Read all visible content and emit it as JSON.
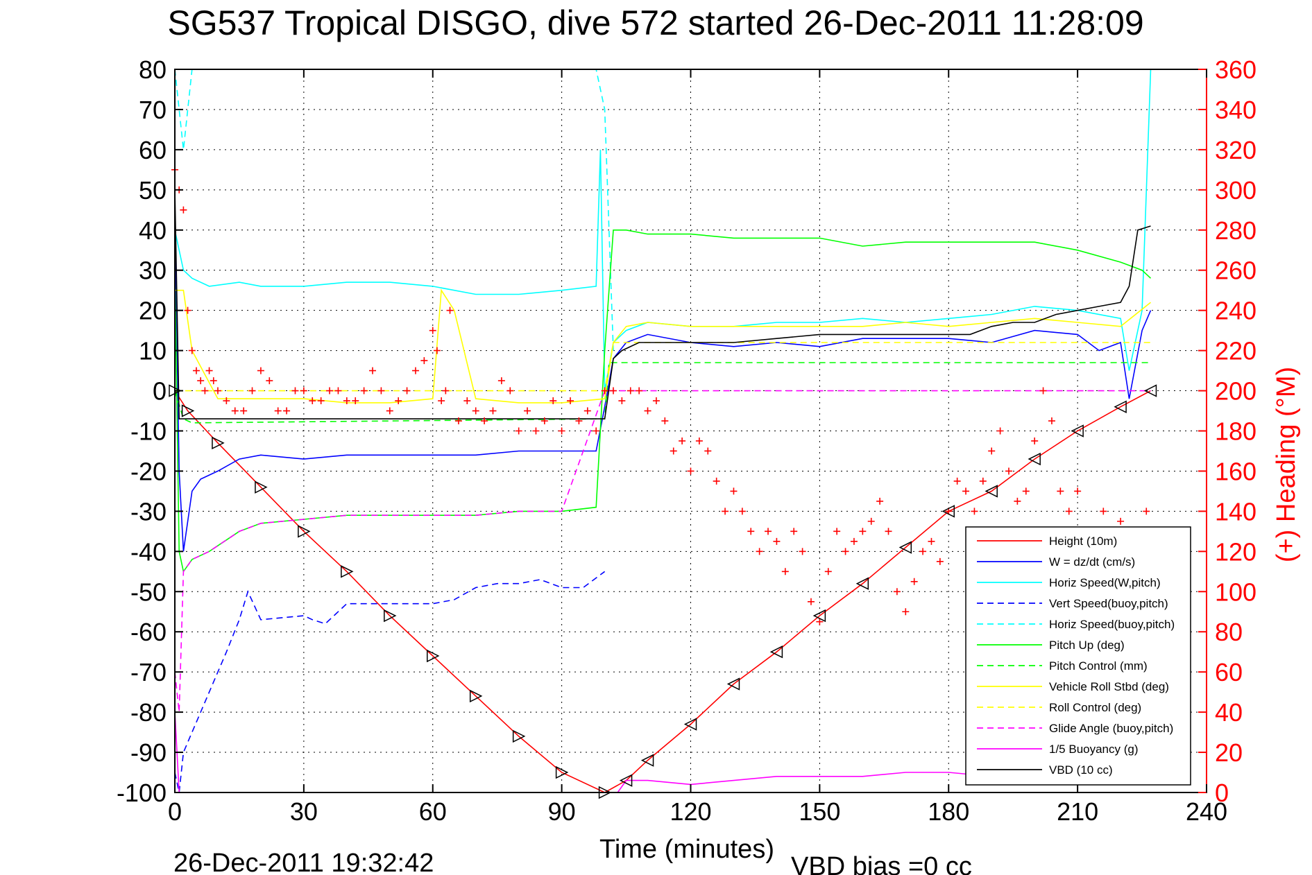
{
  "chart_data": {
    "type": "line",
    "title": "SG537 Tropical DISGO, dive 572 started 26-Dec-2011 11:28:09",
    "xlabel": "Time (minutes)",
    "ylabel_right": "(+) Heading (°M)",
    "footer_timestamp": "26-Dec-2011 19:32:42",
    "footer_bias": "VBD bias =0 cc",
    "xlim": [
      0,
      240
    ],
    "ylim_left": [
      -100,
      80
    ],
    "ylim_right": [
      0,
      360
    ],
    "xticks": [
      0,
      30,
      60,
      90,
      120,
      150,
      180,
      210,
      240
    ],
    "yticks_left": [
      -100,
      -90,
      -80,
      -70,
      -60,
      -50,
      -40,
      -30,
      -20,
      -10,
      0,
      10,
      20,
      30,
      40,
      50,
      60,
      70,
      80
    ],
    "yticks_right": [
      0,
      20,
      40,
      60,
      80,
      100,
      120,
      140,
      160,
      180,
      200,
      220,
      240,
      260,
      280,
      300,
      320,
      340,
      360
    ],
    "grid": true,
    "legend_position": "bottom-right",
    "colors": {
      "right_axis": "#ff0000",
      "height": "#ff0000",
      "w": "#0000ff",
      "horiz_speed": "#00ffff",
      "pitch": "#00ff00",
      "roll": "#ffff00",
      "glide": "#ff00ff",
      "vbd": "#000000",
      "heading": "#ff0000"
    },
    "series": [
      {
        "name": "Height (10m)",
        "color": "#ff0000",
        "dash": "solid",
        "x": [
          0,
          3,
          10,
          20,
          30,
          40,
          50,
          60,
          70,
          80,
          90,
          100,
          105,
          110,
          120,
          130,
          140,
          150,
          160,
          170,
          180,
          190,
          200,
          210,
          220,
          227
        ],
        "y": [
          0,
          -5,
          -13,
          -24,
          -35,
          -45,
          -56,
          -66,
          -76,
          -86,
          -95,
          -100,
          -97,
          -92,
          -83,
          -73,
          -65,
          -56,
          -48,
          -39,
          -30,
          -25,
          -17,
          -10,
          -4,
          0
        ]
      },
      {
        "name": "W = dz/dt (cm/s)",
        "color": "#0000ff",
        "dash": "solid",
        "x": [
          0,
          1,
          2,
          4,
          6,
          10,
          15,
          20,
          30,
          40,
          50,
          60,
          70,
          80,
          90,
          98,
          100,
          102,
          105,
          110,
          120,
          130,
          140,
          150,
          160,
          170,
          180,
          190,
          200,
          210,
          215,
          220,
          222,
          225,
          227
        ],
        "y": [
          45,
          -20,
          -40,
          -25,
          -22,
          -20,
          -17,
          -16,
          -17,
          -16,
          -16,
          -16,
          -16,
          -15,
          -15,
          -15,
          -4,
          8,
          12,
          14,
          12,
          11,
          12,
          11,
          13,
          13,
          13,
          12,
          15,
          14,
          10,
          12,
          -2,
          15,
          20
        ]
      },
      {
        "name": "Horiz Speed(W,pitch)",
        "color": "#00ffff",
        "dash": "solid",
        "x": [
          0,
          1,
          2,
          4,
          8,
          15,
          20,
          30,
          40,
          50,
          60,
          70,
          80,
          90,
          98,
          99,
          100,
          102,
          105,
          110,
          120,
          130,
          140,
          150,
          160,
          170,
          180,
          190,
          200,
          210,
          220,
          222,
          225,
          227
        ],
        "y": [
          40,
          35,
          30,
          28,
          26,
          27,
          26,
          26,
          27,
          27,
          26,
          24,
          24,
          25,
          26,
          60,
          0,
          12,
          15,
          17,
          16,
          16,
          17,
          17,
          18,
          17,
          18,
          19,
          21,
          20,
          18,
          5,
          20,
          80
        ]
      },
      {
        "name": "Vert Speed(buoy,pitch)",
        "color": "#0000ff",
        "dash": "dashed",
        "x": [
          0,
          1,
          2,
          4,
          8,
          12,
          15,
          17,
          20,
          30,
          32,
          35,
          40,
          50,
          55,
          60,
          65,
          70,
          75,
          80,
          85,
          90,
          95,
          100
        ],
        "y": [
          -95,
          -100,
          -90,
          -85,
          -75,
          -65,
          -57,
          -50,
          -57,
          -56,
          -57,
          -58,
          -53,
          -53,
          -53,
          -53,
          -52,
          -49,
          -48,
          -48,
          -47,
          -49,
          -49,
          -45
        ]
      },
      {
        "name": "Horiz Speed(buoy,pitch)",
        "color": "#00ffff",
        "dash": "dashed",
        "x": [
          0,
          2,
          4,
          98,
          100,
          102
        ],
        "y": [
          80,
          60,
          80,
          80,
          70,
          10
        ]
      },
      {
        "name": "Pitch Up (deg)",
        "color": "#00ff00",
        "dash": "solid",
        "x": [
          0,
          1,
          2,
          4,
          8,
          15,
          20,
          30,
          40,
          50,
          60,
          70,
          80,
          90,
          98,
          100,
          102,
          105,
          110,
          120,
          130,
          140,
          150,
          160,
          170,
          180,
          190,
          200,
          210,
          220,
          225,
          227
        ],
        "y": [
          30,
          -40,
          -45,
          -42,
          -40,
          -35,
          -33,
          -32,
          -31,
          -31,
          -31,
          -31,
          -30,
          -30,
          -29,
          10,
          40,
          40,
          39,
          39,
          38,
          38,
          38,
          36,
          37,
          37,
          37,
          37,
          35,
          32,
          30,
          28
        ]
      },
      {
        "name": "Pitch Control (mm)",
        "color": "#00ff00",
        "dash": "dashed",
        "x": [
          0,
          2,
          4,
          100,
          101,
          227
        ],
        "y": [
          0,
          -7,
          -8,
          -7,
          7,
          7
        ]
      },
      {
        "name": "Vehicle Roll Stbd (deg)",
        "color": "#ffff00",
        "dash": "solid",
        "x": [
          0,
          2,
          4,
          10,
          20,
          30,
          40,
          50,
          60,
          62,
          65,
          70,
          80,
          90,
          100,
          102,
          105,
          110,
          120,
          130,
          140,
          150,
          160,
          170,
          180,
          190,
          200,
          210,
          220,
          227
        ],
        "y": [
          25,
          25,
          10,
          -2,
          -2,
          -2,
          -3,
          -3,
          -2,
          25,
          20,
          -2,
          -3,
          -3,
          -2,
          12,
          16,
          17,
          16,
          16,
          16,
          16,
          16,
          17,
          16,
          17,
          18,
          17,
          16,
          22
        ]
      },
      {
        "name": "Roll Control (deg)",
        "color": "#ffff00",
        "dash": "dashed",
        "x": [
          0,
          4,
          100,
          102,
          227
        ],
        "y": [
          0,
          0,
          0,
          12,
          12
        ]
      },
      {
        "name": "Glide Angle (buoy,pitch)",
        "color": "#ff00ff",
        "dash": "dashed",
        "x": [
          0,
          1,
          2,
          4,
          8,
          15,
          20,
          30,
          40,
          50,
          60,
          70,
          80,
          90,
          100,
          102,
          227
        ],
        "y": [
          -70,
          -80,
          -45,
          -42,
          -40,
          -35,
          -33,
          -32,
          -31,
          -31,
          -31,
          -31,
          -30,
          -30,
          0,
          0,
          0
        ]
      },
      {
        "name": "1/5 Buoyancy (g)",
        "color": "#ff00ff",
        "dash": "solid",
        "x": [
          0,
          1,
          2,
          100,
          103,
          105,
          110,
          120,
          130,
          140,
          150,
          160,
          170,
          180,
          190,
          200,
          210,
          220,
          227
        ],
        "y": [
          -80,
          -100,
          -100,
          -100,
          -100,
          -97,
          -97,
          -98,
          -97,
          -96,
          -96,
          -96,
          -95,
          -95,
          -96,
          -96,
          -96,
          -96,
          -96
        ]
      },
      {
        "name": "VBD (10 cc)",
        "color": "#000000",
        "dash": "solid",
        "x": [
          0,
          1,
          2,
          99,
          100,
          102,
          104,
          108,
          110,
          120,
          130,
          140,
          150,
          160,
          170,
          175,
          180,
          185,
          190,
          195,
          200,
          205,
          210,
          215,
          220,
          222,
          224,
          227
        ],
        "y": [
          50,
          -7,
          -7,
          -7,
          -7,
          8,
          10,
          12,
          12,
          12,
          12,
          13,
          14,
          14,
          14,
          14,
          14,
          14,
          16,
          17,
          17,
          19,
          20,
          21,
          22,
          26,
          40,
          41
        ]
      }
    ],
    "heading_series": {
      "name": "Heading (°M)",
      "color": "#ff0000",
      "marker": "+",
      "x": [
        0,
        1,
        2,
        3,
        4,
        5,
        6,
        7,
        8,
        9,
        10,
        12,
        14,
        16,
        18,
        20,
        22,
        24,
        26,
        28,
        30,
        32,
        34,
        36,
        38,
        40,
        42,
        44,
        46,
        48,
        50,
        52,
        54,
        56,
        58,
        60,
        61,
        62,
        63,
        64,
        66,
        68,
        70,
        72,
        74,
        76,
        78,
        80,
        82,
        84,
        86,
        88,
        90,
        92,
        94,
        96,
        98,
        100,
        102,
        104,
        106,
        108,
        110,
        112,
        114,
        116,
        118,
        120,
        122,
        124,
        126,
        128,
        130,
        132,
        134,
        136,
        138,
        140,
        142,
        144,
        146,
        148,
        150,
        152,
        154,
        156,
        158,
        160,
        162,
        164,
        166,
        168,
        170,
        172,
        174,
        176,
        178,
        180,
        182,
        184,
        186,
        188,
        190,
        192,
        194,
        196,
        198,
        200,
        202,
        204,
        206,
        208,
        210,
        212,
        216,
        220,
        226
      ],
      "y": [
        310,
        300,
        290,
        240,
        220,
        210,
        205,
        200,
        210,
        205,
        200,
        195,
        190,
        190,
        200,
        210,
        205,
        190,
        190,
        200,
        200,
        195,
        195,
        200,
        200,
        195,
        195,
        200,
        210,
        200,
        190,
        195,
        200,
        210,
        215,
        230,
        220,
        195,
        200,
        240,
        185,
        195,
        190,
        185,
        190,
        205,
        200,
        180,
        190,
        180,
        185,
        195,
        180,
        195,
        185,
        190,
        180,
        200,
        200,
        195,
        200,
        200,
        190,
        195,
        185,
        170,
        175,
        160,
        175,
        170,
        155,
        140,
        150,
        140,
        130,
        120,
        130,
        125,
        110,
        130,
        120,
        95,
        85,
        110,
        130,
        120,
        125,
        130,
        135,
        145,
        130,
        100,
        90,
        105,
        120,
        125,
        115,
        140,
        155,
        150,
        140,
        155,
        170,
        180,
        160,
        145,
        150,
        175,
        200,
        185,
        150,
        140,
        150,
        130,
        140,
        135,
        140
      ]
    }
  }
}
